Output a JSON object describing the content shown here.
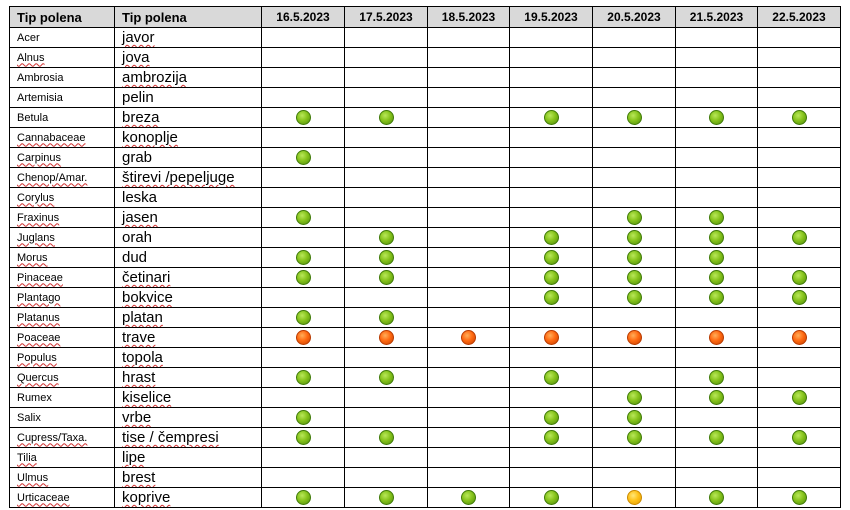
{
  "header": {
    "col_latin": "Tip polena",
    "col_local": "Tip polena",
    "dates": [
      "16.5.2023",
      "17.5.2023",
      "18.5.2023",
      "19.5.2023",
      "20.5.2023",
      "21.5.2023",
      "22.5.2023"
    ]
  },
  "level_colors": {
    "green": "#86c31c",
    "orange": "#ff6a12",
    "yellow": "#ffc21a"
  },
  "rows": [
    {
      "latin": "Acer",
      "latin_marked": false,
      "local": "javor",
      "local_marked": true,
      "levels": [
        "",
        "",
        "",
        "",
        "",
        "",
        ""
      ]
    },
    {
      "latin": "Alnus",
      "latin_marked": true,
      "local": "jova",
      "local_marked": true,
      "levels": [
        "",
        "",
        "",
        "",
        "",
        "",
        ""
      ]
    },
    {
      "latin": "Ambrosia",
      "latin_marked": false,
      "local": "ambrozija",
      "local_marked": true,
      "levels": [
        "",
        "",
        "",
        "",
        "",
        "",
        ""
      ]
    },
    {
      "latin": "Artemisia",
      "latin_marked": false,
      "local": "pelin",
      "local_marked": false,
      "levels": [
        "",
        "",
        "",
        "",
        "",
        "",
        ""
      ]
    },
    {
      "latin": "Betula",
      "latin_marked": false,
      "local": "breza",
      "local_marked": true,
      "levels": [
        "green",
        "green",
        "",
        "green",
        "green",
        "green",
        "green"
      ]
    },
    {
      "latin": "Cannabaceae",
      "latin_marked": true,
      "local": "konoplje",
      "local_marked": true,
      "levels": [
        "",
        "",
        "",
        "",
        "",
        "",
        ""
      ]
    },
    {
      "latin": "Carpinus",
      "latin_marked": true,
      "local": "grab",
      "local_marked": false,
      "levels": [
        "green",
        "",
        "",
        "",
        "",
        "",
        ""
      ]
    },
    {
      "latin": "Chenop/Amar.",
      "latin_marked": true,
      "local": "štirevi /pepeljuge",
      "local_marked": true,
      "levels": [
        "",
        "",
        "",
        "",
        "",
        "",
        ""
      ]
    },
    {
      "latin": "Corylus",
      "latin_marked": true,
      "local": "leska",
      "local_marked": false,
      "levels": [
        "",
        "",
        "",
        "",
        "",
        "",
        ""
      ]
    },
    {
      "latin": "Fraxinus",
      "latin_marked": true,
      "local": "jasen",
      "local_marked": true,
      "levels": [
        "green",
        "",
        "",
        "",
        "green",
        "green",
        ""
      ]
    },
    {
      "latin": "Juglans",
      "latin_marked": true,
      "local": "orah",
      "local_marked": false,
      "levels": [
        "",
        "green",
        "",
        "green",
        "green",
        "green",
        "green"
      ]
    },
    {
      "latin": "Morus",
      "latin_marked": true,
      "local": "dud",
      "local_marked": false,
      "levels": [
        "green",
        "green",
        "",
        "green",
        "green",
        "green",
        ""
      ]
    },
    {
      "latin": "Pinaceae",
      "latin_marked": true,
      "local": "četinari",
      "local_marked": true,
      "levels": [
        "green",
        "green",
        "",
        "green",
        "green",
        "green",
        "green"
      ]
    },
    {
      "latin": "Plantago",
      "latin_marked": true,
      "local": "bokvice",
      "local_marked": true,
      "levels": [
        "",
        "",
        "",
        "green",
        "green",
        "green",
        "green"
      ]
    },
    {
      "latin": "Platanus",
      "latin_marked": true,
      "local": "platan",
      "local_marked": true,
      "levels": [
        "green",
        "green",
        "",
        "",
        "",
        "",
        ""
      ]
    },
    {
      "latin": "Poaceae",
      "latin_marked": true,
      "local": "trave",
      "local_marked": true,
      "levels": [
        "orange",
        "orange",
        "orange",
        "orange",
        "orange",
        "orange",
        "orange"
      ]
    },
    {
      "latin": "Populus",
      "latin_marked": true,
      "local": "topola",
      "local_marked": true,
      "levels": [
        "",
        "",
        "",
        "",
        "",
        "",
        ""
      ]
    },
    {
      "latin": "Quercus",
      "latin_marked": true,
      "local": "hrast",
      "local_marked": true,
      "levels": [
        "green",
        "green",
        "",
        "green",
        "",
        "green",
        ""
      ]
    },
    {
      "latin": "Rumex",
      "latin_marked": false,
      "local": "kiselice",
      "local_marked": true,
      "levels": [
        "",
        "",
        "",
        "",
        "green",
        "green",
        "green"
      ]
    },
    {
      "latin": "Salix",
      "latin_marked": false,
      "local": "vrbe",
      "local_marked": true,
      "levels": [
        "green",
        "",
        "",
        "green",
        "green",
        "",
        ""
      ]
    },
    {
      "latin": "Cupress/Taxa.",
      "latin_marked": true,
      "local": "tise / čempresi",
      "local_marked": true,
      "levels": [
        "green",
        "green",
        "",
        "green",
        "green",
        "green",
        "green"
      ]
    },
    {
      "latin": "Tilia",
      "latin_marked": true,
      "local": "lipe",
      "local_marked": true,
      "levels": [
        "",
        "",
        "",
        "",
        "",
        "",
        ""
      ]
    },
    {
      "latin": "Ulmus",
      "latin_marked": true,
      "local": "brest",
      "local_marked": true,
      "levels": [
        "",
        "",
        "",
        "",
        "",
        "",
        ""
      ]
    },
    {
      "latin": "Urticaceae",
      "latin_marked": true,
      "local": "koprive",
      "local_marked": true,
      "levels": [
        "green",
        "green",
        "green",
        "green",
        "yellow",
        "green",
        "green"
      ]
    }
  ]
}
